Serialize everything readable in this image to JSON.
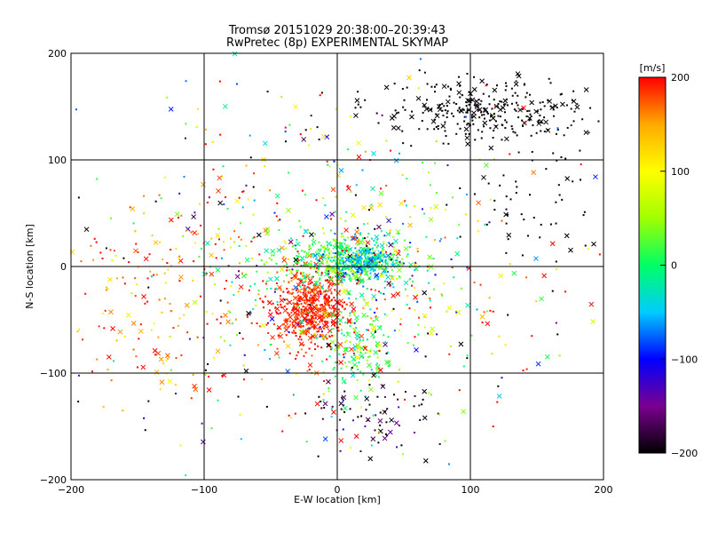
{
  "chart_data": {
    "type": "scatter",
    "title_lines": [
      "Tromsø 20151029 20:38:00–20:39:43",
      "RwPretec (8p) EXPERIMENTAL SKYMAP"
    ],
    "xlabel": "E-W location [km]",
    "ylabel": "N-S location [km]",
    "xlim": [
      -200,
      200
    ],
    "ylim": [
      -200,
      200
    ],
    "xticks": [
      -200,
      -100,
      0,
      100,
      200
    ],
    "yticks": [
      -200,
      -100,
      0,
      100,
      200
    ],
    "xtick_labels": [
      "−200",
      "−100",
      "0",
      "100",
      "200"
    ],
    "ytick_labels": [
      "−200",
      "−100",
      "0",
      "100",
      "200"
    ],
    "grid": true,
    "markers": [
      "dot",
      "cross"
    ],
    "colorbar": {
      "label": "[m/s]",
      "min": -200,
      "max": 200,
      "ticks": [
        200,
        100,
        0,
        -100,
        -200
      ],
      "tick_labels": [
        "200",
        "100",
        "0",
        "−100",
        "−200"
      ],
      "colormap": [
        "#000000",
        "#7a0090",
        "#0000ff",
        "#00ccff",
        "#00ff66",
        "#a0ff00",
        "#ffff00",
        "#ffaa00",
        "#ff0000"
      ]
    },
    "clusters": [
      {
        "cx": -20,
        "cy": -40,
        "sx": 15,
        "sy": 18,
        "n": 520,
        "v": 190,
        "vs": 15
      },
      {
        "cx": 5,
        "cy": 5,
        "sx": 25,
        "sy": 12,
        "n": 420,
        "v": 15,
        "vs": 25
      },
      {
        "cx": 20,
        "cy": 5,
        "sx": 14,
        "sy": 10,
        "n": 180,
        "v": -50,
        "vs": 25
      },
      {
        "cx": 15,
        "cy": -80,
        "sx": 12,
        "sy": 20,
        "n": 130,
        "v": 20,
        "vs": 30
      },
      {
        "cx": 110,
        "cy": 145,
        "sx": 40,
        "sy": 15,
        "n": 300,
        "v": -200,
        "vs": 6
      },
      {
        "cx": 0,
        "cy": -10,
        "sx": 55,
        "sy": 55,
        "n": 450,
        "v": 60,
        "vs": 120
      },
      {
        "cx": -130,
        "cy": -20,
        "sx": 35,
        "sy": 45,
        "n": 160,
        "v": 170,
        "vs": 40
      },
      {
        "cx": 30,
        "cy": -140,
        "sx": 25,
        "sy": 20,
        "n": 70,
        "v": -180,
        "vs": 30
      },
      {
        "cx": 0,
        "cy": 0,
        "sx": 110,
        "sy": 110,
        "n": 320,
        "v": 0,
        "vs": 200
      },
      {
        "cx": 150,
        "cy": 60,
        "sx": 25,
        "sy": 35,
        "n": 50,
        "v": -200,
        "vs": 5
      }
    ]
  }
}
